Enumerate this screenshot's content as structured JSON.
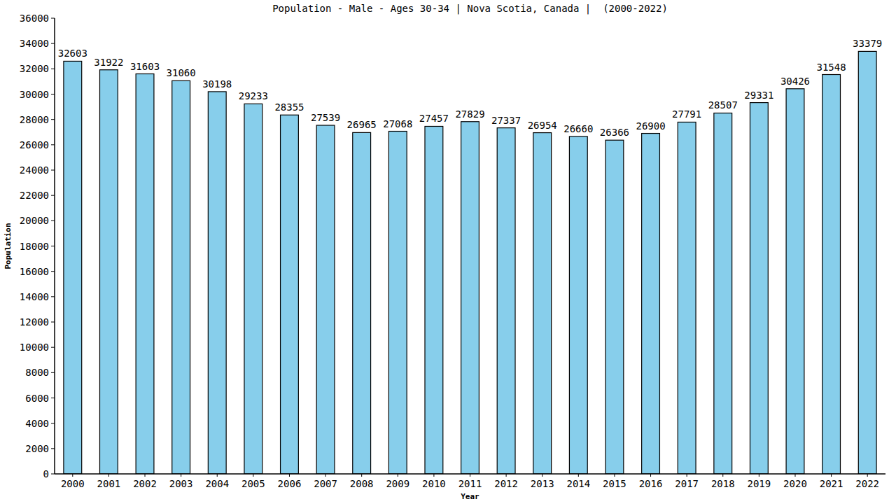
{
  "chart_data": {
    "type": "bar",
    "title": "Population - Male - Ages 30-34 | Nova Scotia, Canada |  (2000-2022)",
    "x_label": "Year",
    "y_label": "Population",
    "categories": [
      "2000",
      "2001",
      "2002",
      "2003",
      "2004",
      "2005",
      "2006",
      "2007",
      "2008",
      "2009",
      "2010",
      "2011",
      "2012",
      "2013",
      "2014",
      "2015",
      "2016",
      "2017",
      "2018",
      "2019",
      "2020",
      "2021",
      "2022"
    ],
    "values": [
      32603,
      31922,
      31603,
      31060,
      30198,
      29233,
      28355,
      27539,
      26965,
      27068,
      27457,
      27829,
      27337,
      26954,
      26660,
      26366,
      26900,
      27791,
      28507,
      29331,
      30426,
      31548,
      33379
    ],
    "color": "#87ceeb",
    "ylim": [
      0,
      36000
    ],
    "yticks": [
      0,
      2000,
      4000,
      6000,
      8000,
      10000,
      12000,
      14000,
      16000,
      18000,
      20000,
      22000,
      24000,
      26000,
      28000,
      30000,
      32000,
      34000,
      36000
    ],
    "grid": false,
    "data_labels": true
  }
}
